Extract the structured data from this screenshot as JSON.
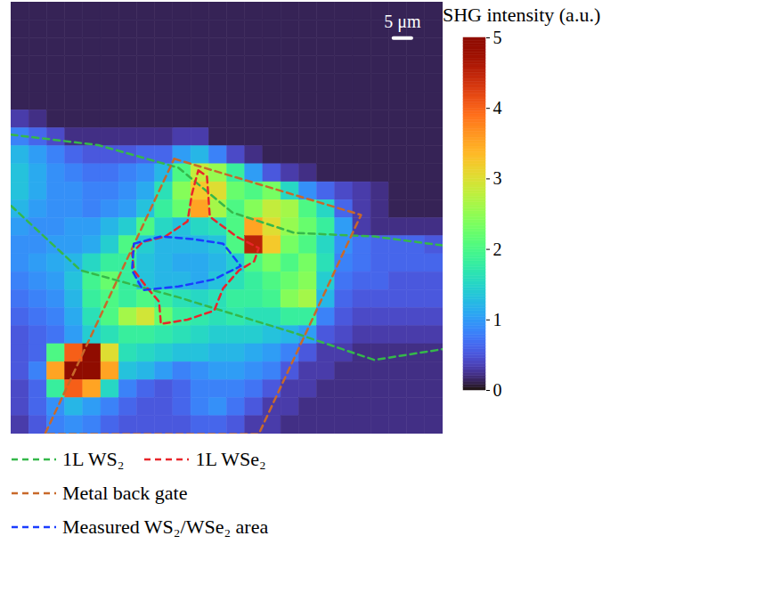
{
  "chart_data": {
    "type": "heatmap",
    "xlim": [
      0,
      120
    ],
    "ylim": [
      0,
      120
    ],
    "tick_labels": false,
    "color": "turbo",
    "legend": "bottom",
    "scale_bar": {
      "label": "5 μm",
      "length": 5
    },
    "colorbar": {
      "label": "SHG intensity (a.u.)",
      "lim": [
        0,
        5
      ],
      "ticks": [
        0,
        1,
        2,
        3,
        4,
        5
      ]
    },
    "cells": [
      [
        0.1,
        0.1,
        0.1,
        0.1,
        0.1,
        0.1,
        0.1,
        0.1,
        0.1,
        0.1,
        0.1,
        0.1,
        0.1,
        0.1,
        0.1,
        0.1,
        0.1,
        0.1,
        0.1,
        0.1,
        0.1,
        0.1,
        0.1,
        0.1
      ],
      [
        0.1,
        0.1,
        0.1,
        0.1,
        0.1,
        0.1,
        0.1,
        0.1,
        0.1,
        0.1,
        0.1,
        0.1,
        0.1,
        0.1,
        0.1,
        0.1,
        0.1,
        0.1,
        0.1,
        0.1,
        0.1,
        0.1,
        0.1,
        0.1
      ],
      [
        0.1,
        0.1,
        0.1,
        0.1,
        0.1,
        0.1,
        0.1,
        0.1,
        0.1,
        0.1,
        0.1,
        0.1,
        0.1,
        0.1,
        0.1,
        0.1,
        0.1,
        0.1,
        0.1,
        0.1,
        0.1,
        0.1,
        0.1,
        0.1
      ],
      [
        0.1,
        0.1,
        0.1,
        0.1,
        0.1,
        0.1,
        0.1,
        0.1,
        0.1,
        0.1,
        0.1,
        0.1,
        0.1,
        0.1,
        0.1,
        0.1,
        0.1,
        0.1,
        0.1,
        0.1,
        0.1,
        0.1,
        0.1,
        0.1
      ],
      [
        0.1,
        0.1,
        0.1,
        0.1,
        0.1,
        0.1,
        0.1,
        0.1,
        0.1,
        0.1,
        0.1,
        0.1,
        0.1,
        0.1,
        0.1,
        0.1,
        0.1,
        0.1,
        0.1,
        0.1,
        0.1,
        0.1,
        0.1,
        0.1
      ],
      [
        0.1,
        0.1,
        0.1,
        0.1,
        0.1,
        0.1,
        0.1,
        0.1,
        0.1,
        0.1,
        0.1,
        0.1,
        0.1,
        0.1,
        0.1,
        0.1,
        0.1,
        0.1,
        0.1,
        0.1,
        0.1,
        0.1,
        0.1,
        0.1
      ],
      [
        0.3,
        0.2,
        0.1,
        0.1,
        0.1,
        0.1,
        0.1,
        0.1,
        0.1,
        0.1,
        0.1,
        0.1,
        0.1,
        0.1,
        0.1,
        0.1,
        0.1,
        0.1,
        0.1,
        0.1,
        0.1,
        0.1,
        0.1,
        0.1
      ],
      [
        0.8,
        0.6,
        0.4,
        0.2,
        0.2,
        0.2,
        0.2,
        0.2,
        0.2,
        0.3,
        0.3,
        0.1,
        0.1,
        0.1,
        0.1,
        0.1,
        0.1,
        0.1,
        0.1,
        0.1,
        0.1,
        0.1,
        0.1,
        0.1
      ],
      [
        1.2,
        1.0,
        0.8,
        0.6,
        0.5,
        0.5,
        0.5,
        0.6,
        0.6,
        1.0,
        1.2,
        0.8,
        0.4,
        0.2,
        0.1,
        0.1,
        0.1,
        0.1,
        0.1,
        0.1,
        0.1,
        0.1,
        0.1,
        0.1
      ],
      [
        1.3,
        1.1,
        0.9,
        0.8,
        0.7,
        0.7,
        0.8,
        0.9,
        1.2,
        2.0,
        2.8,
        2.5,
        1.8,
        1.0,
        0.5,
        0.3,
        0.2,
        0.1,
        0.1,
        0.1,
        0.1,
        0.1,
        0.1,
        0.1
      ],
      [
        1.3,
        1.1,
        0.9,
        0.9,
        0.8,
        0.8,
        0.9,
        1.1,
        1.6,
        2.4,
        3.2,
        3.0,
        2.2,
        2.0,
        2.3,
        1.5,
        0.9,
        0.6,
        0.4,
        0.3,
        0.2,
        0.1,
        0.1,
        0.1
      ],
      [
        1.2,
        1.0,
        0.9,
        0.9,
        0.8,
        0.9,
        1.0,
        1.3,
        1.8,
        2.2,
        3.5,
        2.6,
        2.0,
        2.4,
        2.8,
        2.6,
        2.0,
        1.5,
        0.6,
        0.3,
        0.2,
        0.1,
        0.1,
        0.1
      ],
      [
        1.0,
        0.9,
        0.9,
        1.0,
        1.0,
        1.2,
        1.4,
        2.0,
        1.5,
        1.3,
        1.5,
        1.6,
        2.0,
        3.5,
        3.0,
        2.5,
        2.2,
        1.8,
        1.0,
        0.3,
        0.2,
        0.2,
        0.2,
        0.2
      ],
      [
        0.9,
        0.9,
        1.0,
        1.0,
        1.1,
        1.4,
        2.0,
        1.4,
        1.2,
        1.2,
        1.2,
        1.3,
        2.0,
        4.5,
        3.2,
        2.3,
        2.0,
        1.5,
        0.9,
        0.7,
        0.6,
        0.6,
        0.6,
        0.5
      ],
      [
        0.9,
        1.0,
        1.1,
        1.2,
        1.5,
        1.8,
        1.8,
        1.3,
        1.2,
        1.1,
        1.1,
        1.2,
        1.4,
        2.0,
        2.3,
        2.0,
        2.3,
        1.6,
        0.8,
        0.7,
        0.6,
        0.6,
        0.6,
        0.6
      ],
      [
        0.8,
        0.9,
        1.0,
        1.3,
        1.9,
        2.2,
        1.8,
        1.3,
        1.2,
        1.2,
        1.1,
        1.3,
        1.6,
        1.8,
        2.0,
        2.2,
        2.4,
        1.4,
        0.7,
        0.6,
        0.6,
        0.5,
        0.5,
        0.5
      ],
      [
        0.7,
        0.8,
        0.9,
        1.2,
        1.8,
        2.0,
        1.8,
        2.0,
        1.8,
        1.6,
        1.5,
        1.6,
        1.8,
        1.8,
        1.9,
        2.4,
        2.6,
        1.2,
        0.6,
        0.5,
        0.5,
        0.5,
        0.5,
        0.5
      ],
      [
        0.6,
        0.7,
        0.8,
        1.1,
        1.6,
        2.0,
        2.6,
        2.9,
        2.2,
        1.8,
        1.7,
        1.6,
        1.7,
        1.6,
        1.6,
        1.8,
        1.8,
        0.8,
        0.5,
        0.4,
        0.4,
        0.4,
        0.4,
        0.4
      ],
      [
        0.5,
        0.6,
        0.7,
        1.0,
        1.4,
        1.6,
        1.8,
        1.8,
        1.7,
        1.6,
        1.5,
        1.4,
        1.4,
        1.4,
        1.3,
        1.2,
        1.0,
        0.5,
        0.4,
        0.3,
        0.3,
        0.3,
        0.3,
        0.3
      ],
      [
        0.5,
        0.6,
        2.0,
        4.0,
        5.0,
        3.0,
        1.6,
        1.5,
        1.4,
        1.3,
        1.3,
        1.2,
        1.2,
        1.1,
        1.0,
        0.8,
        0.5,
        0.3,
        0.3,
        0.2,
        0.2,
        0.2,
        0.2,
        0.2
      ],
      [
        0.5,
        0.8,
        3.5,
        5.0,
        5.0,
        3.5,
        1.3,
        1.2,
        1.0,
        0.8,
        0.9,
        1.0,
        1.0,
        0.9,
        0.8,
        0.5,
        0.3,
        0.3,
        0.2,
        0.2,
        0.2,
        0.2,
        0.2,
        0.2
      ],
      [
        0.4,
        0.6,
        1.8,
        4.0,
        3.5,
        1.5,
        0.8,
        0.6,
        0.5,
        0.6,
        0.8,
        0.8,
        0.8,
        0.7,
        0.5,
        0.3,
        0.3,
        0.2,
        0.2,
        0.2,
        0.2,
        0.2,
        0.2,
        0.2
      ],
      [
        0.4,
        0.6,
        0.9,
        1.2,
        1.0,
        0.8,
        0.6,
        0.5,
        0.5,
        0.6,
        0.8,
        0.9,
        0.7,
        0.5,
        0.3,
        0.3,
        0.2,
        0.2,
        0.2,
        0.2,
        0.2,
        0.2,
        0.2,
        0.2
      ],
      [
        0.3,
        0.5,
        0.8,
        0.9,
        0.8,
        0.6,
        0.5,
        0.5,
        0.5,
        0.5,
        0.6,
        0.6,
        0.5,
        0.3,
        0.3,
        0.2,
        0.2,
        0.2,
        0.2,
        0.2,
        0.2,
        0.2,
        0.2,
        0.2
      ]
    ],
    "series": [
      {
        "name": "1L WS₂",
        "color": "#35b84a",
        "line_style": "dashed",
        "lines": [
          [
            [
              0,
              36.8
            ],
            [
              24.2,
              39.7
            ],
            [
              46.5,
              46.0
            ],
            [
              61.4,
              58.4
            ],
            [
              78.7,
              64.1
            ],
            [
              100.9,
              65.1
            ],
            [
              120,
              67.6
            ]
          ],
          [
            [
              0,
              56.6
            ],
            [
              19.3,
              74.5
            ],
            [
              46.5,
              82.0
            ],
            [
              78.7,
              91.9
            ],
            [
              100.9,
              99.4
            ],
            [
              120,
              96.4
            ]
          ]
        ]
      },
      {
        "name": "1L WSe₂",
        "color": "#e8262b",
        "line_style": "dashed",
        "lines": [
          [
            [
              52.0,
              46.7
            ],
            [
              54.4,
              48.4
            ],
            [
              55.2,
              59.6
            ],
            [
              62.6,
              65.1
            ],
            [
              68.8,
              68.3
            ],
            [
              67.5,
              72.0
            ],
            [
              63.3,
              74.5
            ],
            [
              58.9,
              79.5
            ],
            [
              56.4,
              85.7
            ],
            [
              49.0,
              88.2
            ],
            [
              41.6,
              89.4
            ],
            [
              41.1,
              83.2
            ],
            [
              37.9,
              79.5
            ],
            [
              34.1,
              74.5
            ],
            [
              33.6,
              69.6
            ],
            [
              36.6,
              66.6
            ],
            [
              42.8,
              65.1
            ],
            [
              49.0,
              60.9
            ],
            [
              50.2,
              53.4
            ],
            [
              52.0,
              46.7
            ]
          ]
        ]
      },
      {
        "name": "Metal back gate",
        "color": "#c8692a",
        "line_style": "dashed",
        "lines": [
          [
            [
              45.3,
              43.5
            ],
            [
              97.2,
              59.1
            ],
            [
              68.8,
              120
            ],
            [
              9.4,
              120
            ],
            [
              45.3,
              43.5
            ]
          ]
        ]
      },
      {
        "name": "Measured WS₂/WSe₂ area",
        "color": "#1a3cff",
        "line_style": "dashed",
        "lines": [
          [
            [
              34.1,
              67.1
            ],
            [
              41.6,
              65.1
            ],
            [
              50.2,
              65.8
            ],
            [
              58.9,
              67.1
            ],
            [
              63.8,
              73.3
            ],
            [
              56.4,
              77.0
            ],
            [
              46.5,
              79.0
            ],
            [
              36.6,
              80.0
            ],
            [
              33.6,
              74.5
            ],
            [
              34.1,
              67.1
            ]
          ]
        ]
      }
    ]
  }
}
